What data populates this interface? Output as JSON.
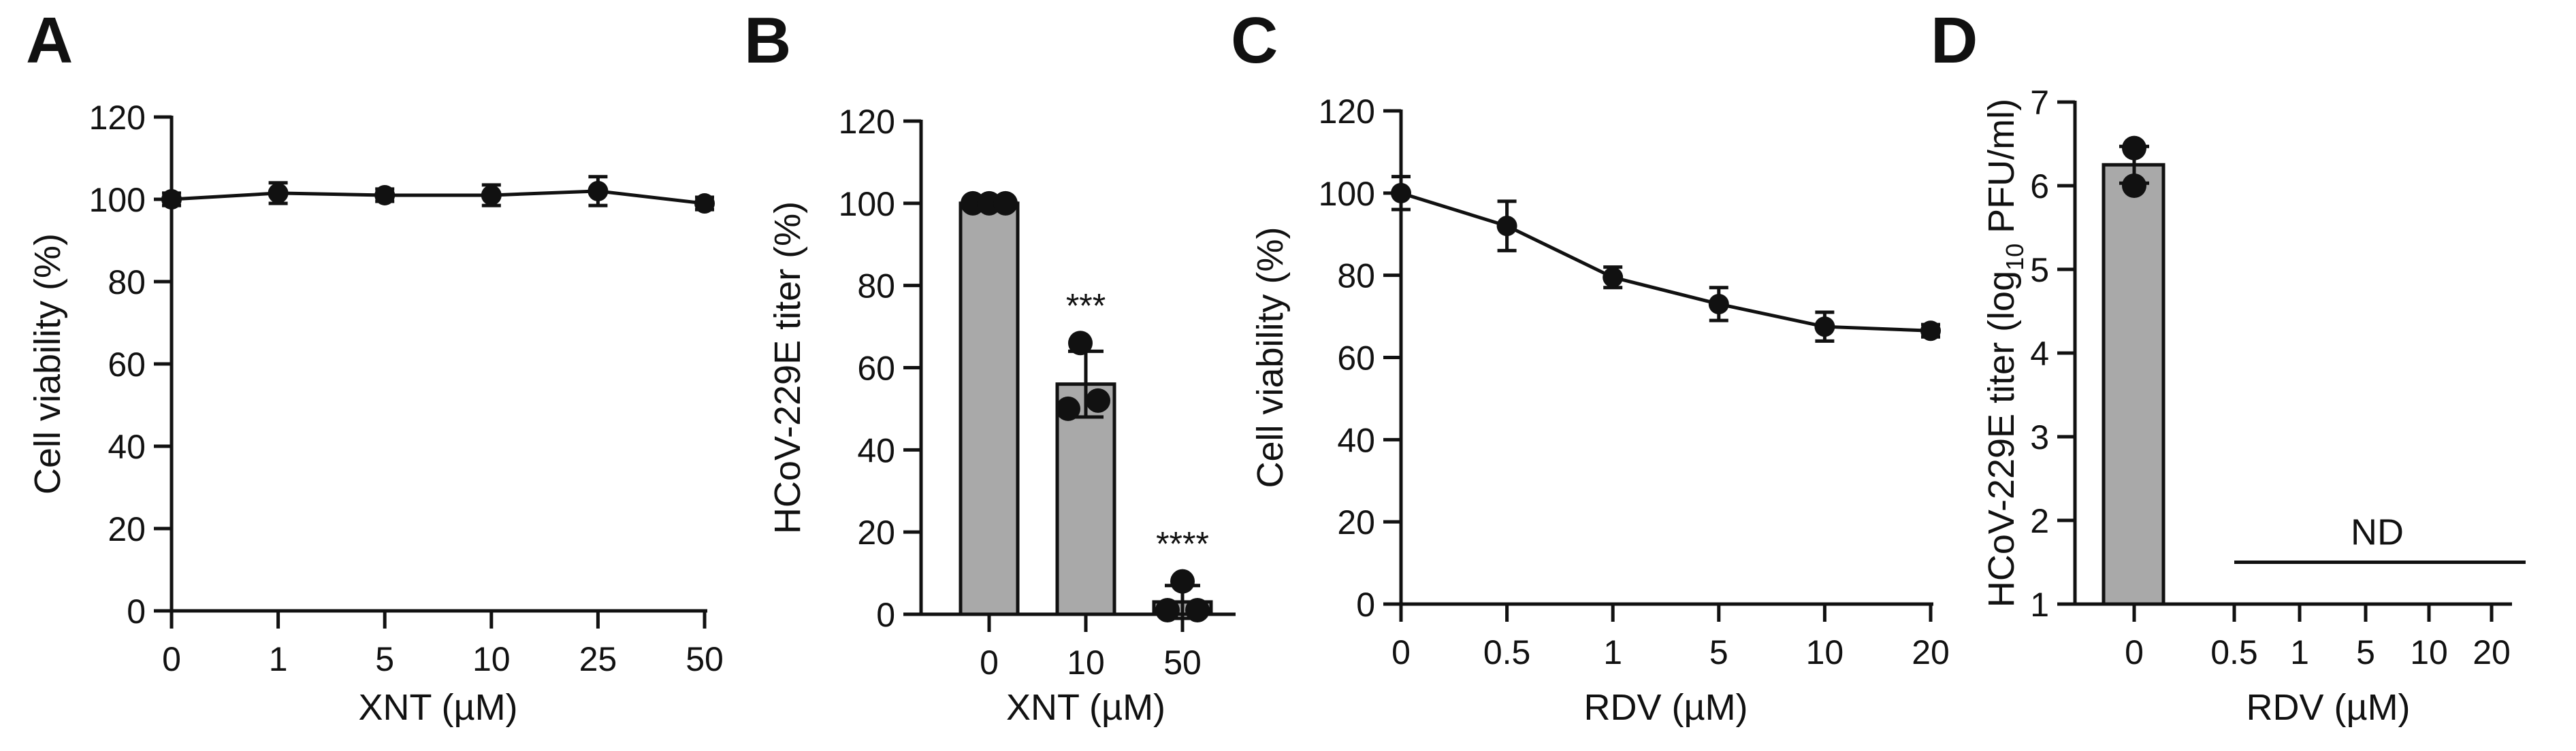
{
  "chart_data": [
    {
      "panel": "A",
      "type": "line",
      "xlabel": "XNT (µM)",
      "ylabel": "Cell viability (%)",
      "categories": [
        "0",
        "1",
        "5",
        "10",
        "25",
        "50"
      ],
      "values": [
        100,
        101.5,
        101,
        101,
        102,
        99
      ],
      "errors": [
        1.5,
        2.5,
        1.5,
        2.5,
        3.5,
        1.5
      ],
      "ylim": [
        0,
        120
      ],
      "yticks": [
        "0",
        "20",
        "40",
        "60",
        "80",
        "100",
        "120"
      ],
      "color": "#111111"
    },
    {
      "panel": "B",
      "type": "bar",
      "xlabel": "XNT (µM)",
      "ylabel": "HCoV-229E titer (%)",
      "categories": [
        "0",
        "10",
        "50"
      ],
      "values": [
        100,
        56,
        3
      ],
      "errors": [
        0,
        8,
        4
      ],
      "points": [
        [
          100,
          100,
          100
        ],
        [
          66,
          50,
          52
        ],
        [
          8,
          1,
          1
        ]
      ],
      "significance": [
        "",
        "***",
        "****"
      ],
      "ylim": [
        0,
        120
      ],
      "yticks": [
        "0",
        "20",
        "40",
        "60",
        "80",
        "100",
        "120"
      ],
      "bar_color": "#a9a9a9"
    },
    {
      "panel": "C",
      "type": "line",
      "xlabel": "RDV (µM)",
      "ylabel": "Cell viability (%)",
      "categories": [
        "0",
        "0.5",
        "1",
        "5",
        "10",
        "20"
      ],
      "values": [
        100,
        92,
        79.5,
        73,
        67.5,
        66.5
      ],
      "errors": [
        4,
        6,
        2.5,
        4,
        3.5,
        1.5
      ],
      "ylim": [
        0,
        120
      ],
      "yticks": [
        "0",
        "20",
        "40",
        "60",
        "80",
        "100",
        "120"
      ],
      "color": "#111111"
    },
    {
      "panel": "D",
      "type": "bar",
      "xlabel": "RDV (µM)",
      "ylabel_main": "HCoV-229E titer (log",
      "ylabel_sub": "10",
      "ylabel_end": " PFU/ml)",
      "categories": [
        "0",
        "0.5",
        "1",
        "5",
        "10",
        "20"
      ],
      "values": [
        6.25,
        null,
        null,
        null,
        null,
        null
      ],
      "errors": [
        0.22,
        null,
        null,
        null,
        null,
        null
      ],
      "points": [
        [
          6.45,
          6.0
        ]
      ],
      "annotation": "ND",
      "ylim": [
        1,
        7
      ],
      "yticks": [
        "1",
        "2",
        "3",
        "4",
        "5",
        "6",
        "7"
      ],
      "bar_color": "#a9a9a9"
    }
  ]
}
